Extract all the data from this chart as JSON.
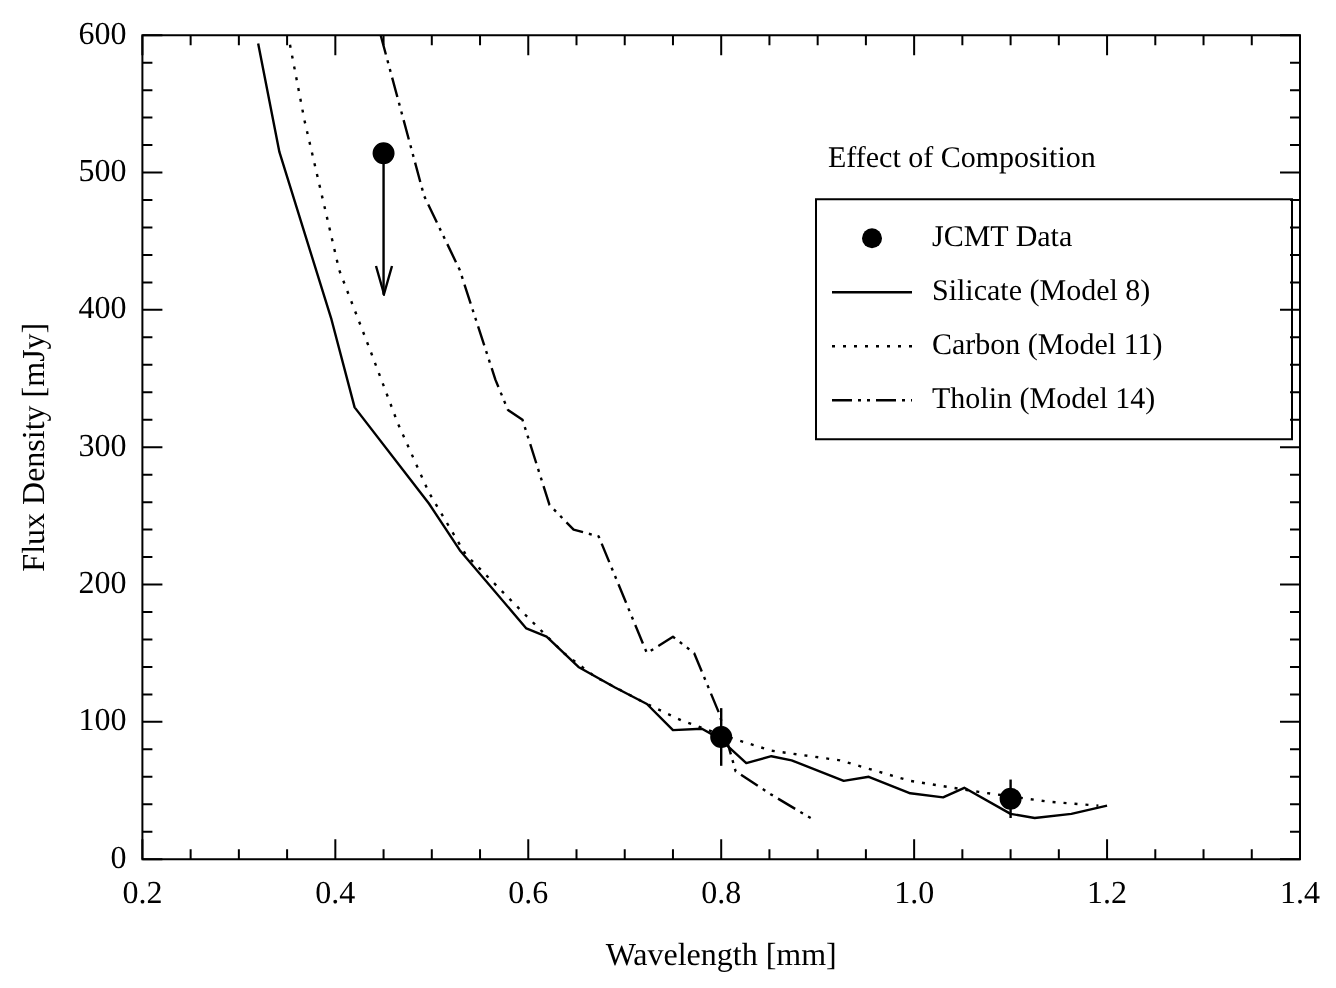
{
  "chart_data": {
    "type": "line",
    "xlabel": "Wavelength [mm]",
    "ylabel": "Flux Density [mJy]",
    "legend_title": "Effect of Composition",
    "legend": "top right",
    "grid": false,
    "xlim": [
      0.2,
      1.4
    ],
    "ylim": [
      0,
      600
    ],
    "xticks": [
      0.2,
      {
        "value": 0.25,
        "label": null
      },
      {
        "value": 0.3,
        "label": null
      },
      {
        "value": 0.35,
        "label": null
      },
      0.4,
      {
        "value": 0.45,
        "label": null
      },
      {
        "value": 0.5,
        "label": null
      },
      {
        "value": 0.55,
        "label": null
      },
      0.6,
      {
        "value": 0.65,
        "label": null
      },
      {
        "value": 0.7,
        "label": null
      },
      {
        "value": 0.75,
        "label": null
      },
      0.8,
      {
        "value": 0.85,
        "label": null
      },
      {
        "value": 0.9,
        "label": null
      },
      {
        "value": 0.95,
        "label": null
      },
      {
        "value": 1,
        "label": "1.0"
      },
      {
        "value": 1.05,
        "label": null
      },
      {
        "value": 1.1,
        "label": null
      },
      {
        "value": 1.15,
        "label": null
      },
      1.2,
      {
        "value": 1.25,
        "label": null
      },
      {
        "value": 1.3,
        "label": null
      },
      {
        "value": 1.35,
        "label": null
      },
      1.4
    ],
    "yticks": [
      0,
      {
        "value": 20,
        "label": null
      },
      {
        "value": 40,
        "label": null
      },
      {
        "value": 60,
        "label": null
      },
      {
        "value": 80,
        "label": null
      },
      100,
      {
        "value": 120,
        "label": null
      },
      {
        "value": 140,
        "label": null
      },
      {
        "value": 160,
        "label": null
      },
      {
        "value": 180,
        "label": null
      },
      200,
      {
        "value": 220,
        "label": null
      },
      {
        "value": 240,
        "label": null
      },
      {
        "value": 260,
        "label": null
      },
      {
        "value": 280,
        "label": null
      },
      300,
      {
        "value": 320,
        "label": null
      },
      {
        "value": 340,
        "label": null
      },
      {
        "value": 360,
        "label": null
      },
      {
        "value": 380,
        "label": null
      },
      400,
      {
        "value": 420,
        "label": null
      },
      {
        "value": 440,
        "label": null
      },
      {
        "value": 460,
        "label": null
      },
      {
        "value": 480,
        "label": null
      },
      500,
      {
        "value": 520,
        "label": null
      },
      {
        "value": 540,
        "label": null
      },
      {
        "value": 560,
        "label": null
      },
      {
        "value": 580,
        "label": null
      },
      600
    ],
    "series": [
      {
        "name": "JCMT Data",
        "type": "scatter",
        "marker": "circle",
        "color": "#000000",
        "x": [
          0.45,
          0.8,
          1.1
        ],
        "values": [
          514,
          89,
          44
        ],
        "errors": [
          [
            411,
            514
          ],
          21,
          14
        ]
      },
      {
        "name": "Silicate (Model 8)",
        "type": "line",
        "marker": "none",
        "line_style": "solid",
        "color": "#000000",
        "x": [
          0.32,
          0.342,
          0.396,
          0.42,
          0.497,
          0.529,
          0.598,
          0.619,
          0.652,
          0.69,
          0.723,
          0.75,
          0.78,
          0.798,
          0.826,
          0.852,
          0.873,
          0.927,
          0.953,
          0.996,
          1.03,
          1.052,
          1.1,
          1.125,
          1.163,
          1.2
        ],
        "values": [
          594,
          515,
          393,
          329,
          259,
          225,
          168,
          162,
          140,
          125,
          113,
          94,
          95,
          88,
          70,
          75,
          72,
          57,
          60,
          48,
          45,
          52,
          33,
          30,
          33,
          39
        ]
      },
      {
        "name": "Carbon (Model 11)",
        "type": "line",
        "marker": "none",
        "line_style": "dotted",
        "color": "#000000",
        "x": [
          0.353,
          0.368,
          0.404,
          0.437,
          0.465,
          0.497,
          0.535,
          0.594,
          0.637,
          0.669,
          0.723,
          0.759,
          0.798,
          0.852,
          0.923,
          0.996,
          1.067,
          1.138,
          1.191
        ],
        "values": [
          593,
          538,
          429,
          369,
          317,
          267,
          222,
          180,
          150,
          133,
          113,
          101,
          91,
          79,
          72,
          57,
          49,
          42,
          39
        ]
      },
      {
        "name": "Tholin (Model 14)",
        "type": "line",
        "marker": "none",
        "line_style": "dashed",
        "color": "#000000",
        "x": [
          0.447,
          0.492,
          0.529,
          0.566,
          0.579,
          0.594,
          0.622,
          0.647,
          0.673,
          0.723,
          0.75,
          0.772,
          0.798,
          0.815,
          0.852,
          0.895
        ],
        "values": [
          600,
          483,
          429,
          349,
          327,
          320,
          258,
          240,
          235,
          150,
          162,
          150,
          106,
          64,
          47,
          29
        ]
      }
    ]
  }
}
